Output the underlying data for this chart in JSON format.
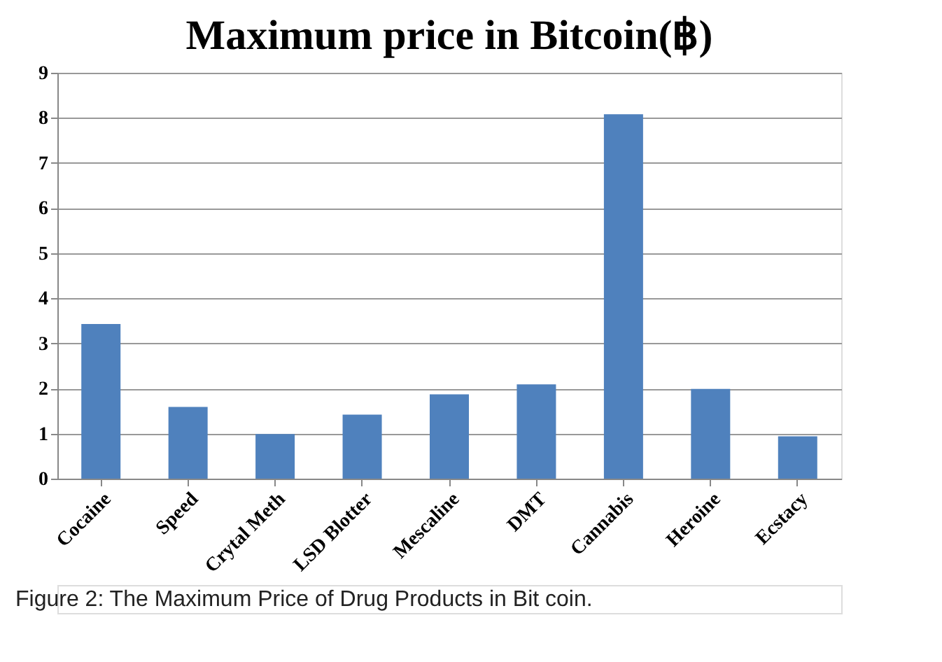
{
  "chart_data": {
    "type": "bar",
    "title": "Maximum price in Bitcoin(฿)",
    "categories": [
      "Cocaine",
      "Speed",
      "Crytal Meth",
      "LSD Blotter",
      "Mescaline",
      "DMT",
      "Cannabis",
      "Heroine",
      "Ecstacy"
    ],
    "values": [
      3.43,
      1.59,
      0.99,
      1.42,
      1.87,
      2.09,
      8.08,
      1.99,
      0.94
    ],
    "color": "#4f81bd",
    "ylim": [
      0,
      9
    ],
    "yticks": [
      0,
      1,
      2,
      3,
      4,
      5,
      6,
      7,
      8,
      9
    ],
    "grid": "y",
    "annotations": [
      "Figure 2: The Maximum Price of Drug Products in Bit coin."
    ]
  }
}
